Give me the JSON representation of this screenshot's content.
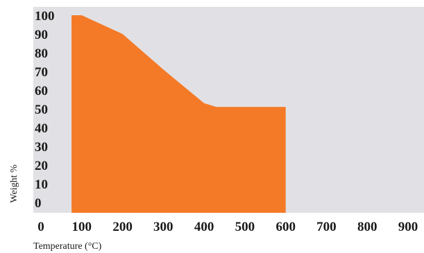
{
  "chart_data": {
    "type": "area",
    "title": "",
    "xlabel": "Temperature (°C)",
    "ylabel": "Weight %",
    "xlim": [
      0,
      900
    ],
    "ylim": [
      0,
      100
    ],
    "x_ticks": [
      "0",
      "100",
      "200",
      "300",
      "400",
      "500",
      "600",
      "700",
      "800",
      "900"
    ],
    "y_ticks": [
      "0",
      "10",
      "20",
      "30",
      "40",
      "50",
      "60",
      "70",
      "80",
      "90",
      "100"
    ],
    "grid": false,
    "legend": "none",
    "colors": {
      "area": "#f47a27",
      "plot_background": "#e1e1e5"
    },
    "series": [
      {
        "x": [
          75,
          100,
          200,
          300,
          400,
          430,
          600,
          600,
          75
        ],
        "y": [
          100,
          100,
          90,
          71,
          53,
          51,
          51,
          0,
          0
        ]
      }
    ]
  }
}
